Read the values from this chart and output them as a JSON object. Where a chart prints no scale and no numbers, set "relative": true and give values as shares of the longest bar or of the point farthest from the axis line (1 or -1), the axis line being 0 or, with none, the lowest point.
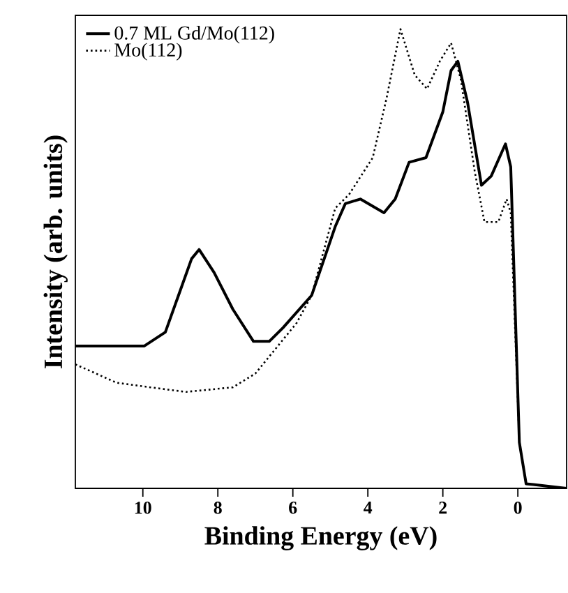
{
  "chart_data": {
    "type": "line",
    "xlabel": "Binding Energy (eV)",
    "ylabel": "Intensity (arb. units)",
    "relative": true,
    "tick_labels": "x",
    "legend": "top left",
    "grid": false,
    "xlim": [
      11.8,
      -1.3
    ],
    "xticks": [
      10,
      8,
      6,
      4,
      2,
      0
    ],
    "series": [
      {
        "name": "0.7 ML Gd/Mo(112)",
        "color": "#000000",
        "line_style": "solid",
        "x": [
          11.8,
          9.96,
          9.4,
          9.05,
          8.7,
          8.5,
          8.1,
          7.6,
          7.05,
          6.63,
          6.26,
          5.5,
          4.87,
          4.6,
          4.2,
          3.57,
          3.27,
          2.9,
          2.45,
          2.0,
          1.78,
          1.6,
          1.34,
          0.97,
          0.71,
          0.33,
          0.19,
          -0.04,
          -0.22,
          -1.3
        ],
        "values": [
          0.31,
          0.31,
          0.34,
          0.42,
          0.5,
          0.52,
          0.47,
          0.39,
          0.32,
          0.32,
          0.35,
          0.42,
          0.57,
          0.62,
          0.63,
          0.6,
          0.63,
          0.71,
          0.72,
          0.82,
          0.91,
          0.93,
          0.84,
          0.66,
          0.68,
          0.75,
          0.7,
          0.1,
          0.01,
          0.0
        ]
      },
      {
        "name": "Mo(112)",
        "color": "#000000",
        "line_style": "dotted",
        "x": [
          11.8,
          10.7,
          9.8,
          8.85,
          7.6,
          7.0,
          6.5,
          5.9,
          5.5,
          4.87,
          4.5,
          3.87,
          3.5,
          3.13,
          2.75,
          2.42,
          2.08,
          1.78,
          1.52,
          1.15,
          0.89,
          0.52,
          0.3,
          0.19,
          -0.04,
          -0.22,
          -1.3
        ],
        "values": [
          0.27,
          0.23,
          0.22,
          0.21,
          0.22,
          0.25,
          0.3,
          0.36,
          0.42,
          0.61,
          0.64,
          0.72,
          0.85,
          1.0,
          0.9,
          0.87,
          0.93,
          0.97,
          0.89,
          0.69,
          0.58,
          0.58,
          0.63,
          0.6,
          0.1,
          0.01,
          0.0
        ]
      }
    ]
  }
}
